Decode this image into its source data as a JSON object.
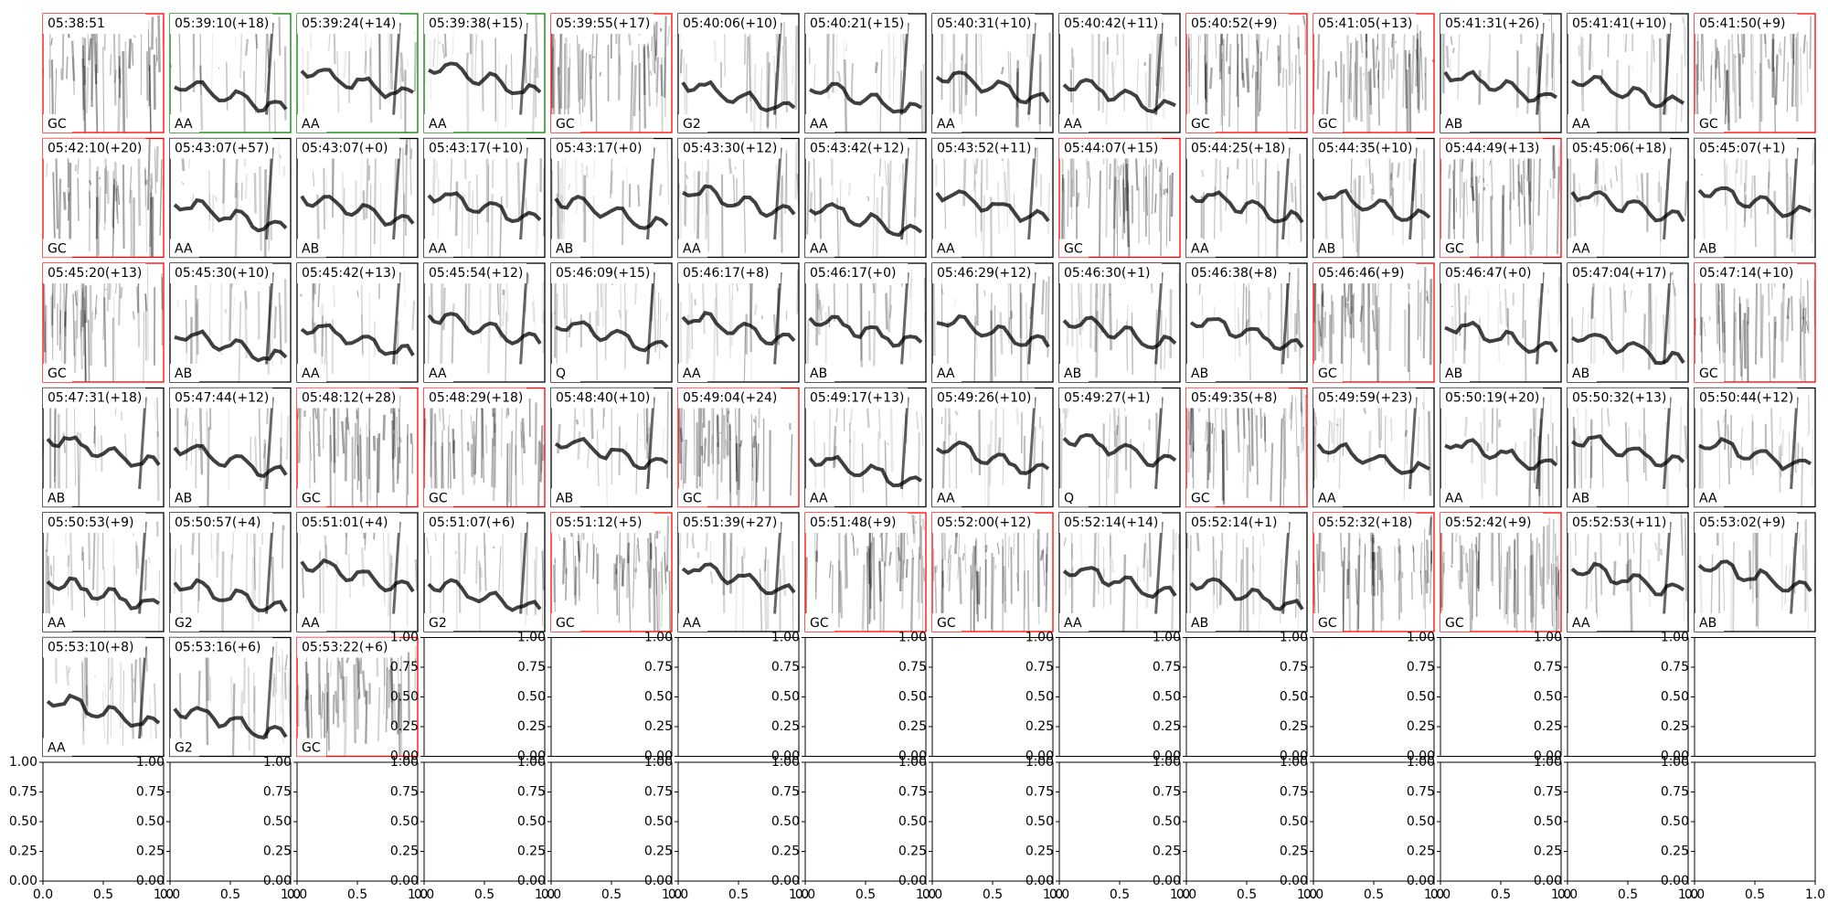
{
  "panels": [
    {
      "time": "05:38:51",
      "label": "GC",
      "border": "red"
    },
    {
      "time": "05:39:10(+18)",
      "label": "AA",
      "border": "green"
    },
    {
      "time": "05:39:24(+14)",
      "label": "AA",
      "border": "green"
    },
    {
      "time": "05:39:38(+15)",
      "label": "AA",
      "border": "green"
    },
    {
      "time": "05:39:55(+17)",
      "label": "GC",
      "border": "red"
    },
    {
      "time": "05:40:06(+10)",
      "label": "G2",
      "border": "black"
    },
    {
      "time": "05:40:21(+15)",
      "label": "AA",
      "border": "black"
    },
    {
      "time": "05:40:31(+10)",
      "label": "AA",
      "border": "black"
    },
    {
      "time": "05:40:42(+11)",
      "label": "AA",
      "border": "black"
    },
    {
      "time": "05:40:52(+9)",
      "label": "GC",
      "border": "red"
    },
    {
      "time": "05:41:05(+13)",
      "label": "GC",
      "border": "red"
    },
    {
      "time": "05:41:31(+26)",
      "label": "AB",
      "border": "black"
    },
    {
      "time": "05:41:41(+10)",
      "label": "AA",
      "border": "black"
    },
    {
      "time": "05:41:50(+9)",
      "label": "GC",
      "border": "red"
    },
    {
      "time": "05:42:10(+20)",
      "label": "GC",
      "border": "red"
    },
    {
      "time": "05:43:07(+57)",
      "label": "AA",
      "border": "black"
    },
    {
      "time": "05:43:07(+0)",
      "label": "AB",
      "border": "black"
    },
    {
      "time": "05:43:17(+10)",
      "label": "AA",
      "border": "black"
    },
    {
      "time": "05:43:17(+0)",
      "label": "AB",
      "border": "black"
    },
    {
      "time": "05:43:30(+12)",
      "label": "AA",
      "border": "black"
    },
    {
      "time": "05:43:42(+12)",
      "label": "AA",
      "border": "black"
    },
    {
      "time": "05:43:52(+11)",
      "label": "AA",
      "border": "black"
    },
    {
      "time": "05:44:07(+15)",
      "label": "GC",
      "border": "red"
    },
    {
      "time": "05:44:25(+18)",
      "label": "AA",
      "border": "black"
    },
    {
      "time": "05:44:35(+10)",
      "label": "AB",
      "border": "black"
    },
    {
      "time": "05:44:49(+13)",
      "label": "GC",
      "border": "red"
    },
    {
      "time": "05:45:06(+18)",
      "label": "AA",
      "border": "black"
    },
    {
      "time": "05:45:07(+1)",
      "label": "AB",
      "border": "black"
    },
    {
      "time": "05:45:20(+13)",
      "label": "GC",
      "border": "red"
    },
    {
      "time": "05:45:30(+10)",
      "label": "AB",
      "border": "black"
    },
    {
      "time": "05:45:42(+13)",
      "label": "AA",
      "border": "black"
    },
    {
      "time": "05:45:54(+12)",
      "label": "AA",
      "border": "black"
    },
    {
      "time": "05:46:09(+15)",
      "label": "Q",
      "border": "black"
    },
    {
      "time": "05:46:17(+8)",
      "label": "AA",
      "border": "black"
    },
    {
      "time": "05:46:17(+0)",
      "label": "AB",
      "border": "black"
    },
    {
      "time": "05:46:29(+12)",
      "label": "AA",
      "border": "black"
    },
    {
      "time": "05:46:30(+1)",
      "label": "AB",
      "border": "black"
    },
    {
      "time": "05:46:38(+8)",
      "label": "AB",
      "border": "black"
    },
    {
      "time": "05:46:46(+9)",
      "label": "GC",
      "border": "red"
    },
    {
      "time": "05:46:47(+0)",
      "label": "AB",
      "border": "black"
    },
    {
      "time": "05:47:04(+17)",
      "label": "AB",
      "border": "black"
    },
    {
      "time": "05:47:14(+10)",
      "label": "GC",
      "border": "red"
    },
    {
      "time": "05:47:31(+18)",
      "label": "AB",
      "border": "black"
    },
    {
      "time": "05:47:44(+12)",
      "label": "AB",
      "border": "black"
    },
    {
      "time": "05:48:12(+28)",
      "label": "GC",
      "border": "red"
    },
    {
      "time": "05:48:29(+18)",
      "label": "GC",
      "border": "red"
    },
    {
      "time": "05:48:40(+10)",
      "label": "AB",
      "border": "black"
    },
    {
      "time": "05:49:04(+24)",
      "label": "GC",
      "border": "red"
    },
    {
      "time": "05:49:17(+13)",
      "label": "AA",
      "border": "black"
    },
    {
      "time": "05:49:26(+10)",
      "label": "AA",
      "border": "black"
    },
    {
      "time": "05:49:27(+1)",
      "label": "Q",
      "border": "black"
    },
    {
      "time": "05:49:35(+8)",
      "label": "GC",
      "border": "red"
    },
    {
      "time": "05:49:59(+23)",
      "label": "AA",
      "border": "black"
    },
    {
      "time": "05:50:19(+20)",
      "label": "AA",
      "border": "black"
    },
    {
      "time": "05:50:32(+13)",
      "label": "AB",
      "border": "black"
    },
    {
      "time": "05:50:44(+12)",
      "label": "AA",
      "border": "black"
    },
    {
      "time": "05:50:53(+9)",
      "label": "AA",
      "border": "black"
    },
    {
      "time": "05:50:57(+4)",
      "label": "G2",
      "border": "black"
    },
    {
      "time": "05:51:01(+4)",
      "label": "AA",
      "border": "black"
    },
    {
      "time": "05:51:07(+6)",
      "label": "G2",
      "border": "black"
    },
    {
      "time": "05:51:12(+5)",
      "label": "GC",
      "border": "red"
    },
    {
      "time": "05:51:39(+27)",
      "label": "AA",
      "border": "black"
    },
    {
      "time": "05:51:48(+9)",
      "label": "GC",
      "border": "red"
    },
    {
      "time": "05:52:00(+12)",
      "label": "GC",
      "border": "red"
    },
    {
      "time": "05:52:14(+14)",
      "label": "AA",
      "border": "black"
    },
    {
      "time": "05:52:14(+1)",
      "label": "AB",
      "border": "black"
    },
    {
      "time": "05:52:32(+18)",
      "label": "GC",
      "border": "red"
    },
    {
      "time": "05:52:42(+9)",
      "label": "GC",
      "border": "red"
    },
    {
      "time": "05:52:53(+11)",
      "label": "AA",
      "border": "black"
    },
    {
      "time": "05:53:02(+9)",
      "label": "AB",
      "border": "black"
    },
    {
      "time": "05:53:10(+8)",
      "label": "AA",
      "border": "black"
    },
    {
      "time": "05:53:16(+6)",
      "label": "G2",
      "border": "black"
    },
    {
      "time": "05:53:22(+6)",
      "label": "GC",
      "border": "red"
    }
  ],
  "empty_axes": {
    "yticks": [
      "0.00",
      "0.25",
      "0.50",
      "0.75",
      "1.00"
    ],
    "xticks": [
      "0.0",
      "0.5",
      "1.0"
    ]
  }
}
